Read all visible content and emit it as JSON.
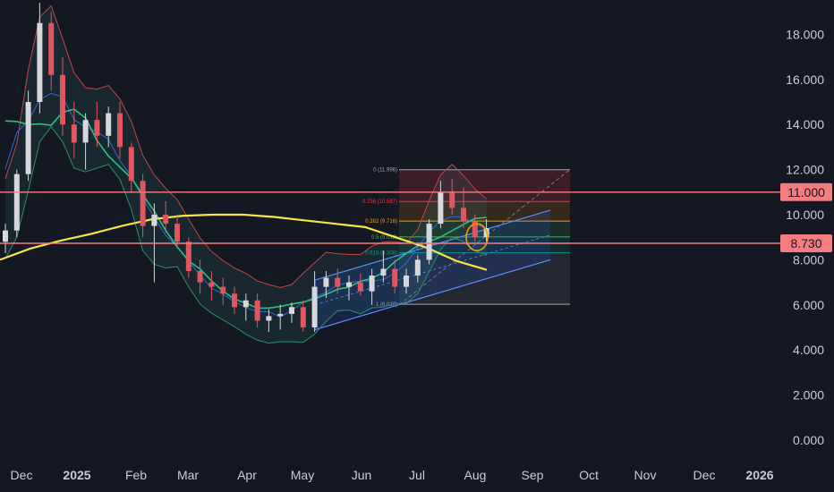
{
  "chart_data": {
    "type": "candlestick",
    "y_ticks": [
      "18.000",
      "16.000",
      "14.000",
      "12.000",
      "10.000",
      "8.000",
      "6.000",
      "4.000",
      "2.000",
      "0.000"
    ],
    "x_ticks": [
      {
        "label": "Dec",
        "bold": false
      },
      {
        "label": "2025",
        "bold": true
      },
      {
        "label": "Feb",
        "bold": false
      },
      {
        "label": "Mar",
        "bold": false
      },
      {
        "label": "Apr",
        "bold": false
      },
      {
        "label": "May",
        "bold": false
      },
      {
        "label": "Jun",
        "bold": false
      },
      {
        "label": "Jul",
        "bold": false
      },
      {
        "label": "Aug",
        "bold": false
      },
      {
        "label": "Sep",
        "bold": false
      },
      {
        "label": "Oct",
        "bold": false
      },
      {
        "label": "Nov",
        "bold": false
      },
      {
        "label": "Dec",
        "bold": false
      },
      {
        "label": "2026",
        "bold": true
      }
    ],
    "ylim": [
      0,
      19.5
    ],
    "horizontal_levels": [
      {
        "price": 11.0,
        "label": "11.000",
        "color": "#f77c80"
      },
      {
        "price": 8.73,
        "label": "8.730",
        "color": "#f77c80"
      }
    ],
    "fib_levels": [
      {
        "ratio": "0",
        "price": 11.996,
        "label": "0 (11.996)",
        "color": "#a0a4ad"
      },
      {
        "ratio": "0.236",
        "price": 10.587,
        "label": "0.236 (10.587)",
        "color": "#f23645"
      },
      {
        "ratio": "0.382",
        "price": 9.716,
        "label": "0.382 (9.716)",
        "color": "#ff9800"
      },
      {
        "ratio": "0.5",
        "price": 9.012,
        "label": "0.5 (9.012)",
        "color": "#4caf50"
      },
      {
        "ratio": "0.618",
        "price": 8.308,
        "label": "0.618 (8.308)",
        "color": "#089981"
      },
      {
        "ratio": "1",
        "price": 6.028,
        "label": "1 (6.028)",
        "color": "#a0a4ad"
      }
    ],
    "series": [
      {
        "name": "",
        "color": "#f5e642",
        "values": [
          [
            0,
            8.0
          ],
          [
            1,
            8.5
          ],
          [
            2,
            8.85
          ],
          [
            3,
            9.15
          ],
          [
            4,
            9.5
          ],
          [
            5,
            9.8
          ],
          [
            6,
            9.95
          ],
          [
            7,
            10.0
          ],
          [
            8,
            10.0
          ],
          [
            9,
            9.9
          ],
          [
            10,
            9.75
          ],
          [
            11,
            9.6
          ],
          [
            12,
            9.45
          ],
          [
            13,
            9.0
          ],
          [
            14,
            8.55
          ],
          [
            15,
            7.95
          ],
          [
            16,
            7.55
          ]
        ]
      }
    ],
    "candles": [
      [
        0,
        8.8,
        9.6,
        8.3,
        9.3
      ],
      [
        1,
        9.3,
        12.0,
        9.0,
        11.8
      ],
      [
        2,
        11.8,
        15.5,
        11.5,
        15.0
      ],
      [
        3,
        15.0,
        19.4,
        14.5,
        18.5
      ],
      [
        4,
        18.5,
        19.0,
        15.5,
        16.2
      ],
      [
        5,
        16.2,
        17.0,
        13.5,
        14.0
      ],
      [
        6,
        14.0,
        15.0,
        12.5,
        13.2
      ],
      [
        7,
        13.2,
        14.5,
        12.0,
        14.2
      ],
      [
        8,
        14.2,
        15.0,
        13.0,
        13.5
      ],
      [
        9,
        13.5,
        14.8,
        13.0,
        14.5
      ],
      [
        10,
        14.5,
        15.0,
        12.5,
        13.0
      ],
      [
        11,
        13.0,
        13.2,
        11.0,
        11.5
      ],
      [
        12,
        11.5,
        11.8,
        9.0,
        9.5
      ],
      [
        13,
        9.5,
        10.5,
        7.0,
        10.0
      ],
      [
        14,
        10.0,
        10.6,
        9.2,
        9.6
      ],
      [
        15,
        9.6,
        10.0,
        8.5,
        8.8
      ],
      [
        16,
        8.8,
        9.0,
        7.2,
        7.5
      ],
      [
        17,
        7.5,
        8.0,
        6.5,
        7.0
      ],
      [
        18,
        7.0,
        7.5,
        6.2,
        6.8
      ],
      [
        19,
        6.8,
        7.2,
        6.0,
        6.5
      ],
      [
        20,
        6.5,
        6.8,
        5.6,
        5.9
      ],
      [
        21,
        5.9,
        6.5,
        5.3,
        6.2
      ],
      [
        22,
        6.2,
        6.5,
        5.0,
        5.3
      ],
      [
        23,
        5.3,
        5.8,
        4.8,
        5.5
      ],
      [
        24,
        5.5,
        6.0,
        4.9,
        5.6
      ],
      [
        25,
        5.6,
        6.1,
        5.2,
        5.9
      ],
      [
        26,
        5.9,
        6.2,
        4.8,
        5.0
      ],
      [
        27,
        5.0,
        7.5,
        4.8,
        6.8
      ],
      [
        28,
        6.8,
        7.5,
        6.3,
        7.2
      ],
      [
        29,
        7.2,
        7.6,
        6.5,
        6.8
      ],
      [
        30,
        6.8,
        7.3,
        6.2,
        7.0
      ],
      [
        31,
        7.0,
        7.4,
        6.4,
        6.6
      ],
      [
        32,
        6.6,
        7.6,
        6.0,
        7.3
      ],
      [
        33,
        7.3,
        8.4,
        7.0,
        7.6
      ],
      [
        34,
        7.6,
        8.0,
        6.5,
        6.8
      ],
      [
        35,
        6.8,
        7.6,
        6.5,
        7.3
      ],
      [
        36,
        7.3,
        8.2,
        7.0,
        8.0
      ],
      [
        37,
        8.0,
        9.8,
        7.8,
        9.6
      ],
      [
        38,
        9.6,
        11.5,
        9.4,
        11.0
      ],
      [
        39,
        11.0,
        11.6,
        10.0,
        10.3
      ],
      [
        40,
        10.3,
        11.2,
        9.4,
        9.7
      ],
      [
        41,
        9.7,
        10.0,
        8.8,
        9.0
      ],
      [
        42,
        9.0,
        9.8,
        8.8,
        9.4
      ]
    ]
  }
}
